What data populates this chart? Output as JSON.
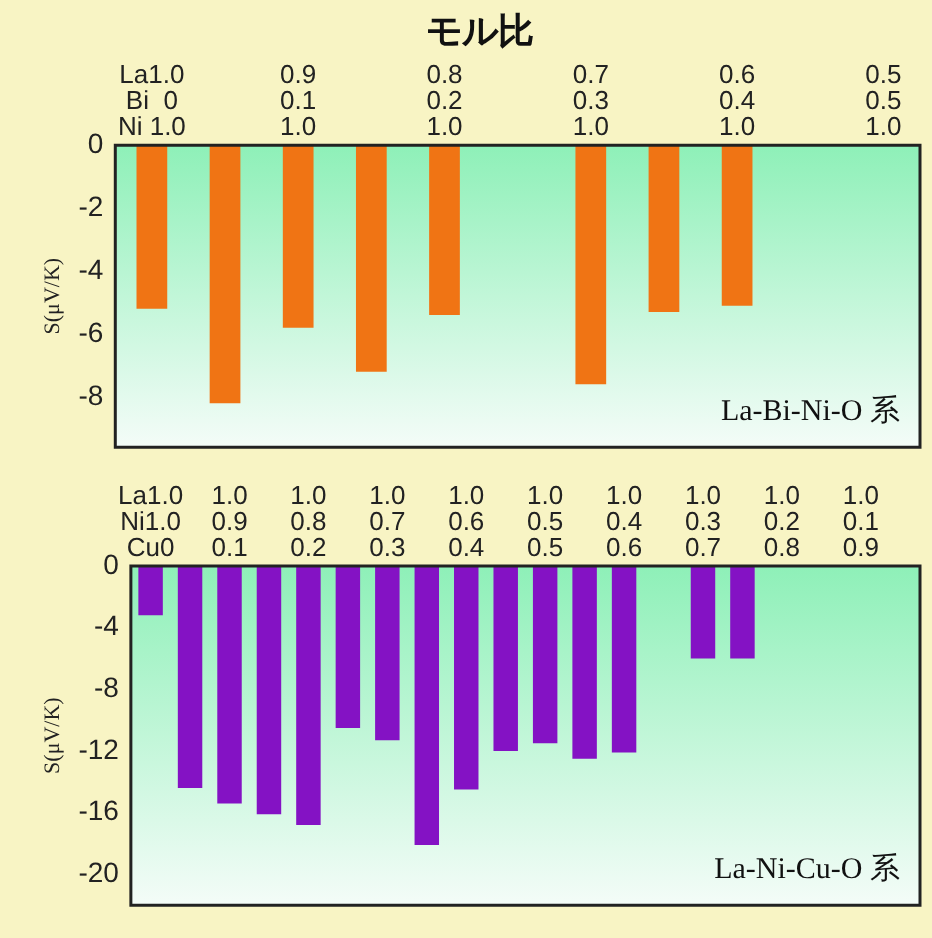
{
  "chart_data": [
    {
      "type": "bar",
      "title": "モル比",
      "ylabel": "S(μV/K)",
      "annotations": [
        "La-Bi-Ni-O 系"
      ],
      "categories": [
        "La1.0\nBi  0\nNi 1.0",
        null,
        "0.9\n0.1\n1.0",
        null,
        "0.8\n0.2\n1.0",
        null,
        "0.7\n0.3\n1.0",
        null,
        "0.6\n0.4\n1.0",
        null,
        "0.5\n0.5\n1.0"
      ],
      "values": [
        -5.2,
        -8.2,
        -5.8,
        -7.2,
        -5.4,
        null,
        -7.6,
        -5.3,
        -5.1,
        null,
        null
      ],
      "color": "#f07414",
      "ylim": [
        -9.6,
        0
      ],
      "yticks": [
        0,
        -2,
        -4,
        -6,
        -8
      ],
      "grid": false,
      "legend": false
    },
    {
      "type": "bar",
      "ylabel": "S(μV/K)",
      "annotations": [
        "La-Ni-Cu-O 系"
      ],
      "categories": [
        "La1.0\nNi1.0\nCu0",
        null,
        "1.0\n0.9\n0.1",
        null,
        "1.0\n0.8\n0.2",
        null,
        "1.0\n0.7\n0.3",
        null,
        "1.0\n0.6\n0.4",
        null,
        "1.0\n0.5\n0.5",
        null,
        "1.0\n0.4\n0.6",
        null,
        "1.0\n0.3\n0.7",
        null,
        "1.0\n0.2\n0.8",
        null,
        "1.0\n0.1\n0.9",
        null
      ],
      "values": [
        -3.2,
        -14.4,
        -15.4,
        -16.1,
        -16.8,
        -10.5,
        -11.3,
        -18.1,
        -14.5,
        -12.0,
        -11.5,
        -12.5,
        -12.1,
        null,
        -6.0,
        -6.0,
        null,
        null,
        null,
        null
      ],
      "color": "#8412c4",
      "ylim": [
        -22,
        0
      ],
      "yticks": [
        0,
        -4,
        -8,
        -12,
        -16,
        -20
      ],
      "grid": false,
      "legend": false
    }
  ]
}
